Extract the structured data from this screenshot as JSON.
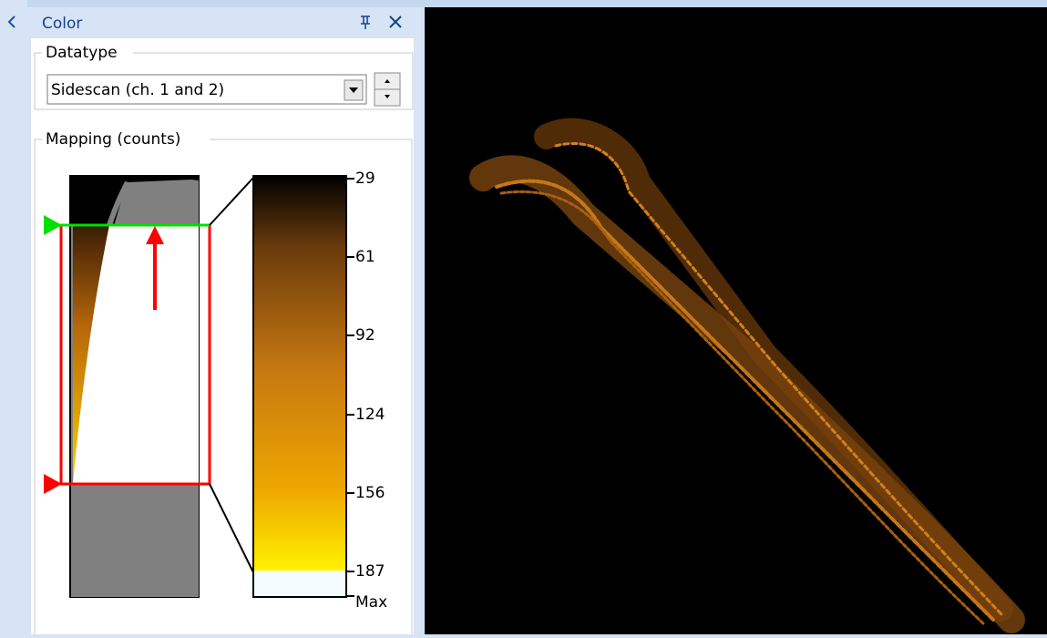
{
  "panel": {
    "title": "Color",
    "datatype": {
      "label": "Datatype",
      "selected": "Sidescan (ch. 1 and 2)"
    },
    "mapping": {
      "label": "Mapping (counts)",
      "scale_labels": [
        "29",
        "61",
        "92",
        "124",
        "156",
        "187",
        "Max"
      ]
    }
  }
}
